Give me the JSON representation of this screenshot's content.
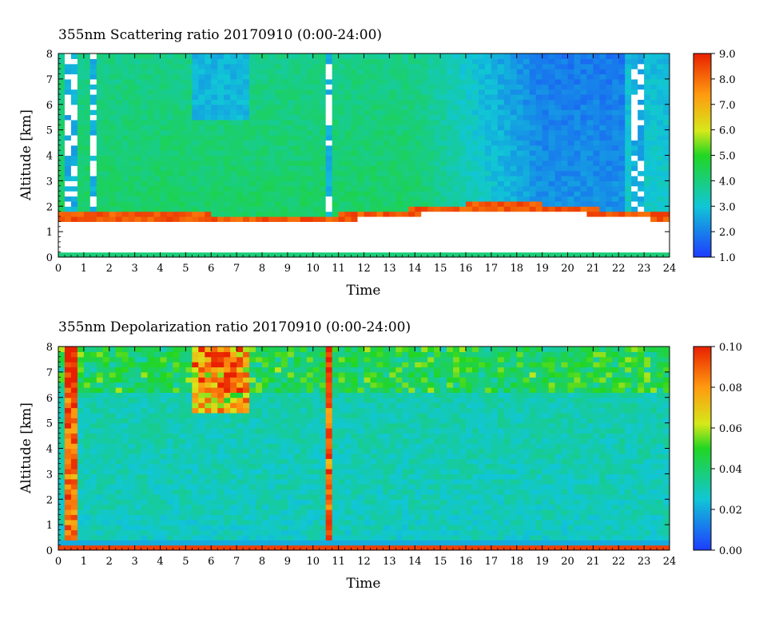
{
  "chart_data": [
    {
      "type": "heatmap",
      "title": "355nm Scattering ratio  20170910 (0:00-24:00)",
      "xlabel": "Time",
      "ylabel": "Altitude [km]",
      "xlim": [
        0,
        24
      ],
      "ylim": [
        0,
        8
      ],
      "x_ticks": [
        "0",
        "1",
        "2",
        "3",
        "4",
        "5",
        "6",
        "7",
        "8",
        "9",
        "10",
        "11",
        "12",
        "13",
        "14",
        "15",
        "16",
        "17",
        "18",
        "19",
        "20",
        "21",
        "22",
        "23",
        "24"
      ],
      "y_ticks": [
        "0",
        "1",
        "2",
        "3",
        "4",
        "5",
        "6",
        "7",
        "8"
      ],
      "colorbar": {
        "min": 1.0,
        "max": 9.0,
        "ticks": [
          "1.0",
          "2.0",
          "3.0",
          "4.0",
          "5.0",
          "6.0",
          "7.0",
          "8.0",
          "9.0"
        ]
      },
      "colors": {
        "low": "#1e3cff",
        "mid": "#22d622",
        "high": "#e82000"
      }
    },
    {
      "type": "heatmap",
      "title": "355nm Depolarization ratio  20170910 (0:00-24:00)",
      "xlabel": "Time",
      "ylabel": "Altitude [km]",
      "xlim": [
        0,
        24
      ],
      "ylim": [
        0,
        8
      ],
      "x_ticks": [
        "0",
        "1",
        "2",
        "3",
        "4",
        "5",
        "6",
        "7",
        "8",
        "9",
        "10",
        "11",
        "12",
        "13",
        "14",
        "15",
        "16",
        "17",
        "18",
        "19",
        "20",
        "21",
        "22",
        "23",
        "24"
      ],
      "y_ticks": [
        "0",
        "1",
        "2",
        "3",
        "4",
        "5",
        "6",
        "7",
        "8"
      ],
      "colorbar": {
        "min": 0.0,
        "max": 0.1,
        "ticks": [
          "0.00",
          "0.02",
          "0.04",
          "0.06",
          "0.08",
          "0.10"
        ]
      },
      "colors": {
        "low": "#1e3cff",
        "mid": "#22d622",
        "high": "#e82000"
      }
    }
  ]
}
